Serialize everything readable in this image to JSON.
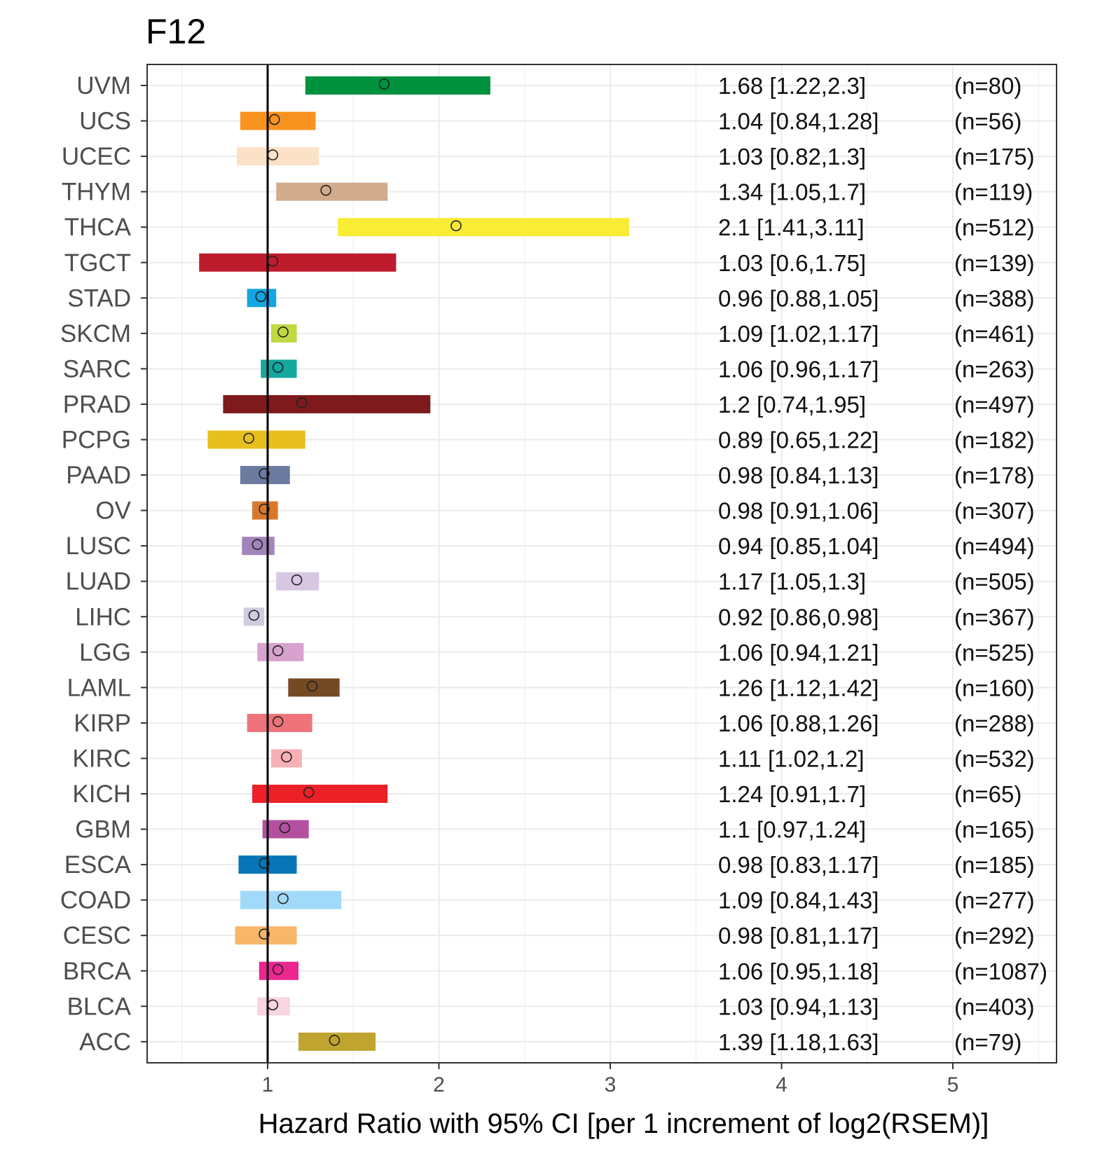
{
  "chart_data": {
    "type": "forest",
    "title": "F12",
    "xlabel": "Hazard Ratio with 95% CI [per 1 increment of log2(RSEM)]",
    "ylabel": "",
    "xlim": [
      0.3,
      5.75
    ],
    "x_ticks": [
      1,
      2,
      3,
      4,
      5
    ],
    "reference_line": 1,
    "grid": true,
    "rows": [
      {
        "label": "UVM",
        "hr": 1.68,
        "lo": 1.22,
        "hi": 2.3,
        "ci_text": "1.68 [1.22,2.3]",
        "n_text": "(n=80)",
        "color": "#00913E"
      },
      {
        "label": "UCS",
        "hr": 1.04,
        "lo": 0.84,
        "hi": 1.28,
        "ci_text": "1.04 [0.84,1.28]",
        "n_text": "(n=56)",
        "color": "#F8931F"
      },
      {
        "label": "UCEC",
        "hr": 1.03,
        "lo": 0.82,
        "hi": 1.3,
        "ci_text": "1.03 [0.82,1.3]",
        "n_text": "(n=175)",
        "color": "#FBE2C6"
      },
      {
        "label": "THYM",
        "hr": 1.34,
        "lo": 1.05,
        "hi": 1.7,
        "ci_text": "1.34 [1.05,1.7]",
        "n_text": "(n=119)",
        "color": "#D1AC8C"
      },
      {
        "label": "THCA",
        "hr": 2.1,
        "lo": 1.41,
        "hi": 3.11,
        "ci_text": "2.1 [1.41,3.11]",
        "n_text": "(n=512)",
        "color": "#F8EC34"
      },
      {
        "label": "TGCT",
        "hr": 1.03,
        "lo": 0.6,
        "hi": 1.75,
        "ci_text": "1.03 [0.6,1.75]",
        "n_text": "(n=139)",
        "color": "#BE1C2D"
      },
      {
        "label": "STAD",
        "hr": 0.96,
        "lo": 0.88,
        "hi": 1.05,
        "ci_text": "0.96 [0.88,1.05]",
        "n_text": "(n=388)",
        "color": "#12A5E2"
      },
      {
        "label": "SKCM",
        "hr": 1.09,
        "lo": 1.02,
        "hi": 1.17,
        "ci_text": "1.09 [1.02,1.17]",
        "n_text": "(n=461)",
        "color": "#BFD942"
      },
      {
        "label": "SARC",
        "hr": 1.06,
        "lo": 0.96,
        "hi": 1.17,
        "ci_text": "1.06 [0.96,1.17]",
        "n_text": "(n=263)",
        "color": "#13A79F"
      },
      {
        "label": "PRAD",
        "hr": 1.2,
        "lo": 0.74,
        "hi": 1.95,
        "ci_text": "1.2 [0.74,1.95]",
        "n_text": "(n=497)",
        "color": "#7E1A1C"
      },
      {
        "label": "PCPG",
        "hr": 0.89,
        "lo": 0.65,
        "hi": 1.22,
        "ci_text": "0.89 [0.65,1.22]",
        "n_text": "(n=182)",
        "color": "#E8C01E"
      },
      {
        "label": "PAAD",
        "hr": 0.98,
        "lo": 0.84,
        "hi": 1.13,
        "ci_text": "0.98 [0.84,1.13]",
        "n_text": "(n=178)",
        "color": "#6C7BA0"
      },
      {
        "label": "OV",
        "hr": 0.98,
        "lo": 0.91,
        "hi": 1.06,
        "ci_text": "0.98 [0.91,1.06]",
        "n_text": "(n=307)",
        "color": "#D9782B"
      },
      {
        "label": "LUSC",
        "hr": 0.94,
        "lo": 0.85,
        "hi": 1.04,
        "ci_text": "0.94 [0.85,1.04]",
        "n_text": "(n=494)",
        "color": "#A285BA"
      },
      {
        "label": "LUAD",
        "hr": 1.17,
        "lo": 1.05,
        "hi": 1.3,
        "ci_text": "1.17 [1.05,1.3]",
        "n_text": "(n=505)",
        "color": "#D8C7E3"
      },
      {
        "label": "LIHC",
        "hr": 0.92,
        "lo": 0.86,
        "hi": 0.98,
        "ci_text": "0.92 [0.86,0.98]",
        "n_text": "(n=367)",
        "color": "#CECDDF"
      },
      {
        "label": "LGG",
        "hr": 1.06,
        "lo": 0.94,
        "hi": 1.21,
        "ci_text": "1.06 [0.94,1.21]",
        "n_text": "(n=525)",
        "color": "#D7A2CD"
      },
      {
        "label": "LAML",
        "hr": 1.26,
        "lo": 1.12,
        "hi": 1.42,
        "ci_text": "1.26 [1.12,1.42]",
        "n_text": "(n=160)",
        "color": "#744A25"
      },
      {
        "label": "KIRP",
        "hr": 1.06,
        "lo": 0.88,
        "hi": 1.26,
        "ci_text": "1.06 [0.88,1.26]",
        "n_text": "(n=288)",
        "color": "#EE737A"
      },
      {
        "label": "KIRC",
        "hr": 1.11,
        "lo": 1.02,
        "hi": 1.2,
        "ci_text": "1.11 [1.02,1.2]",
        "n_text": "(n=532)",
        "color": "#F6B1B7"
      },
      {
        "label": "KICH",
        "hr": 1.24,
        "lo": 0.91,
        "hi": 1.7,
        "ci_text": "1.24 [0.91,1.7]",
        "n_text": "(n=65)",
        "color": "#EB2127"
      },
      {
        "label": "GBM",
        "hr": 1.1,
        "lo": 0.97,
        "hi": 1.24,
        "ci_text": "1.1 [0.97,1.24]",
        "n_text": "(n=165)",
        "color": "#B4509F"
      },
      {
        "label": "ESCA",
        "hr": 0.98,
        "lo": 0.83,
        "hi": 1.17,
        "ci_text": "0.98 [0.83,1.17]",
        "n_text": "(n=185)",
        "color": "#0876B6"
      },
      {
        "label": "COAD",
        "hr": 1.09,
        "lo": 0.84,
        "hi": 1.43,
        "ci_text": "1.09 [0.84,1.43]",
        "n_text": "(n=277)",
        "color": "#A1DAF8"
      },
      {
        "label": "CESC",
        "hr": 0.98,
        "lo": 0.81,
        "hi": 1.17,
        "ci_text": "0.98 [0.81,1.17]",
        "n_text": "(n=292)",
        "color": "#F7B66A"
      },
      {
        "label": "BRCA",
        "hr": 1.06,
        "lo": 0.95,
        "hi": 1.18,
        "ci_text": "1.06 [0.95,1.18]",
        "n_text": "(n=1087)",
        "color": "#EB268F"
      },
      {
        "label": "BLCA",
        "hr": 1.03,
        "lo": 0.94,
        "hi": 1.13,
        "ci_text": "1.03 [0.94,1.13]",
        "n_text": "(n=403)",
        "color": "#F8D5DF"
      },
      {
        "label": "ACC",
        "hr": 1.39,
        "lo": 1.18,
        "hi": 1.63,
        "ci_text": "1.39 [1.18,1.63]",
        "n_text": "(n=79)",
        "color": "#C0A430"
      }
    ]
  }
}
